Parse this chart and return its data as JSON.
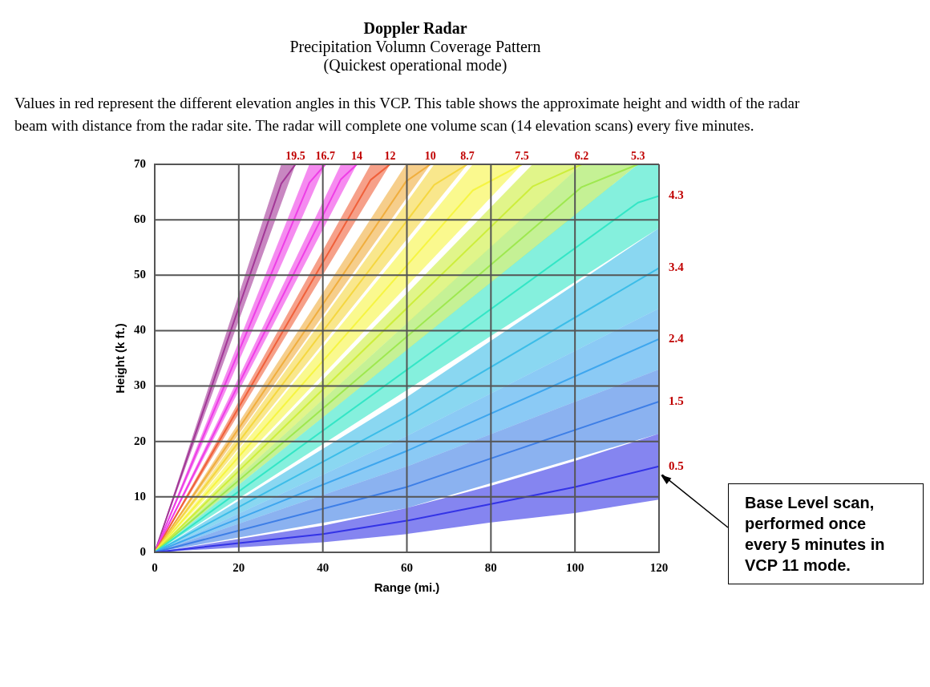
{
  "chart_data": {
    "type": "line",
    "title": "Doppler Radar",
    "subtitle": "Precipitation Volumn Coverage Pattern",
    "annotations": [
      "(Quickest operational mode)",
      "Values in red represent the different elevation angles in this VCP. This table shows the approximate height and width of the radar beam with distance from the radar site. The radar will complete one volume scan (14 elevation scans) every five minutes.",
      {
        "text": "Base Level scan, performed once every 5 minutes in VCP 11 mode.",
        "x": 120,
        "y": 14
      }
    ],
    "xlabel": "Range (mi.)",
    "ylabel": "Height (k ft.)",
    "xlim": [
      0,
      120
    ],
    "xticks": [
      0,
      20,
      40,
      60,
      80,
      100,
      120
    ],
    "ylim": [
      0,
      70
    ],
    "yticks": [
      0,
      10,
      20,
      30,
      40,
      50,
      60,
      70
    ],
    "grid": true,
    "legend": false,
    "series": [
      {
        "name": "0.5",
        "color": "#3333e6",
        "x": [
          0,
          40,
          60,
          80,
          100,
          120
        ],
        "values": [
          0,
          3.3,
          5.7,
          8.7,
          11.8,
          15.5
        ],
        "lower": [
          0,
          1.8,
          3.3,
          5.4,
          7.1,
          9.5
        ],
        "upper": [
          0,
          4.8,
          8,
          12,
          16.5,
          21.4
        ]
      },
      {
        "name": "1.5",
        "color": "#3d7ee6",
        "x": [
          0,
          60,
          120
        ],
        "values": [
          0,
          11.8,
          27.2
        ],
        "lower": [
          0,
          8,
          21.4
        ],
        "upper": [
          0,
          15.5,
          33
        ]
      },
      {
        "name": "2.4",
        "color": "#3ea6ee",
        "x": [
          0,
          60,
          120
        ],
        "values": [
          0,
          18.3,
          38.5
        ],
        "lower": [
          0,
          15.5,
          33
        ],
        "upper": [
          0,
          21,
          44
        ]
      },
      {
        "name": "3.4",
        "color": "#3cbde8",
        "x": [
          0,
          60,
          120
        ],
        "values": [
          0,
          24.5,
          51.3
        ],
        "lower": [
          0,
          21,
          44
        ],
        "upper": [
          0,
          28,
          58.5
        ]
      },
      {
        "name": "4.3",
        "color": "#33e6c6",
        "x": [
          0,
          115,
          120
        ],
        "values": [
          0,
          63.1,
          64.3
        ],
        "lower": [
          0,
          56.1,
          58.5
        ],
        "upper": [
          0,
          70,
          70
        ]
      },
      {
        "name": "5.3",
        "color": "#9ee84f",
        "x": [
          0,
          101.6,
          115
        ],
        "values": [
          0,
          65.9,
          70
        ],
        "lower": [
          0,
          61.8,
          70
        ],
        "upper": [
          0,
          70,
          70
        ]
      },
      {
        "name": "6.2",
        "color": "#cdee3c",
        "x": [
          0,
          89.9,
          101.6
        ],
        "values": [
          0,
          66,
          70
        ],
        "lower": [
          0,
          61.9,
          70
        ],
        "upper": [
          0,
          70,
          70
        ]
      },
      {
        "name": "7.5",
        "color": "#f6f542",
        "x": [
          0,
          75.7,
          87.4
        ],
        "values": [
          0,
          65.3,
          70
        ],
        "lower": [
          0,
          60.6,
          70
        ],
        "upper": [
          0,
          70,
          70
        ]
      },
      {
        "name": "8.7",
        "color": "#f5d740",
        "x": [
          0,
          66.5,
          74.4
        ],
        "values": [
          0,
          66.3,
          70
        ],
        "lower": [
          0,
          62.6,
          70
        ],
        "upper": [
          0,
          70,
          70
        ]
      },
      {
        "name": "10",
        "color": "#f0ae3e",
        "x": [
          0,
          59.8,
          65.6
        ],
        "values": [
          0,
          66.9,
          70
        ],
        "lower": [
          0,
          63.8,
          70
        ],
        "upper": [
          0,
          70,
          70
        ]
      },
      {
        "name": "12",
        "color": "#f0603a",
        "x": [
          0,
          51.4,
          56
        ],
        "values": [
          0,
          67.2,
          70
        ],
        "lower": [
          0,
          64.3,
          70
        ],
        "upper": [
          0,
          70,
          70
        ]
      },
      {
        "name": "14",
        "color": "#f03ee6",
        "x": [
          0,
          44.3,
          48.1
        ],
        "values": [
          0,
          67.3,
          70
        ],
        "lower": [
          0,
          64.5,
          70
        ],
        "upper": [
          0,
          70,
          70
        ]
      },
      {
        "name": "16.7",
        "color": "#ee3ee6",
        "x": [
          0,
          36.8,
          40.6
        ],
        "values": [
          0,
          66.7,
          70
        ],
        "lower": [
          0,
          63.4,
          70
        ],
        "upper": [
          0,
          70,
          70
        ]
      },
      {
        "name": "19.5",
        "color": "#a33797",
        "x": [
          0,
          30.1,
          33.5
        ],
        "values": [
          0,
          66.5,
          70
        ],
        "lower": [
          0,
          62.9,
          70
        ],
        "upper": [
          0,
          70,
          70
        ]
      }
    ]
  }
}
